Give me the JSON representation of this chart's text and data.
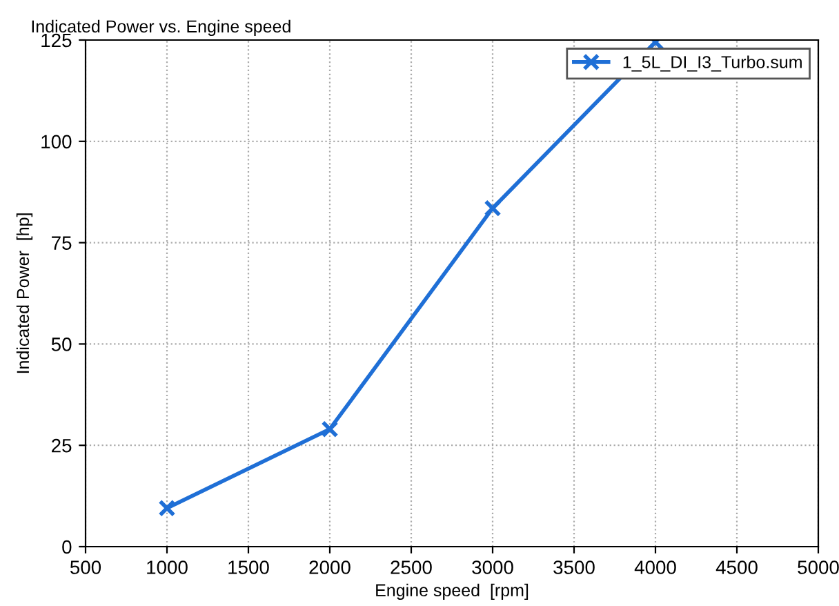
{
  "chart_data": {
    "type": "line",
    "title": "Indicated Power vs. Engine speed",
    "xlabel": "Engine speed  [rpm]",
    "ylabel": "Indicated Power  [hp]",
    "x": [
      1000,
      2000,
      3000,
      4000
    ],
    "series": [
      {
        "name": "1_5L_DI_I3_Turbo.sum",
        "color": "#1f6fd6",
        "values": [
          9.5,
          29,
          83.5,
          124.5
        ]
      }
    ],
    "xlim": [
      500,
      5000
    ],
    "xticks": [
      500,
      1000,
      1500,
      2000,
      2500,
      3000,
      3500,
      4000,
      4500,
      5000
    ],
    "ylim": [
      0,
      125
    ],
    "yticks": [
      0,
      25,
      50,
      75,
      100,
      125
    ],
    "grid": true,
    "legend": "top right",
    "marker": "cross",
    "line_style": "solid"
  }
}
